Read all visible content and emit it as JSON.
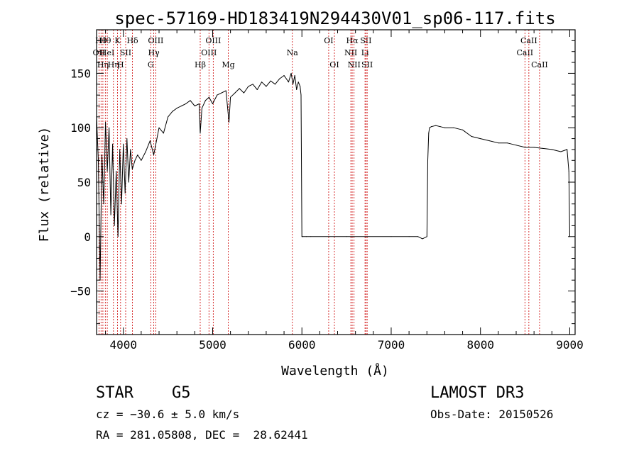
{
  "chart_data": {
    "type": "line",
    "title": "spec-57169-HD183419N294430V01_sp06-117.fits",
    "xlabel": "Wavelength (Å)",
    "ylabel": "Flux (relative)",
    "xlim": [
      3700,
      9060
    ],
    "ylim": [
      -90,
      190
    ],
    "xticks": [
      4000,
      5000,
      6000,
      7000,
      8000,
      9000
    ],
    "yticks": [
      -50,
      0,
      50,
      100,
      150
    ],
    "x_minor_step": 200,
    "y_minor_step": 10,
    "grid": false,
    "series": [
      {
        "name": "flux",
        "x": [
          3700,
          3720,
          3740,
          3760,
          3780,
          3800,
          3820,
          3840,
          3860,
          3880,
          3900,
          3920,
          3940,
          3960,
          3980,
          4000,
          4020,
          4040,
          4060,
          4080,
          4100,
          4130,
          4160,
          4200,
          4250,
          4300,
          4340,
          4400,
          4450,
          4500,
          4550,
          4600,
          4650,
          4700,
          4750,
          4800,
          4850,
          4861,
          4880,
          4920,
          4960,
          5000,
          5050,
          5100,
          5150,
          5183,
          5200,
          5250,
          5300,
          5350,
          5400,
          5450,
          5500,
          5550,
          5600,
          5650,
          5700,
          5750,
          5800,
          5850,
          5880,
          5900,
          5920,
          5940,
          5960,
          5980,
          5990,
          6000,
          6005,
          6010,
          6050,
          6100,
          6500,
          7000,
          7200,
          7300,
          7350,
          7400,
          7410,
          7420,
          7430,
          7450,
          7500,
          7550,
          7600,
          7700,
          7800,
          7900,
          8000,
          8100,
          8200,
          8300,
          8400,
          8500,
          8600,
          8700,
          8800,
          8900,
          8970,
          8990,
          9000
        ],
        "y": [
          110,
          70,
          -40,
          75,
          30,
          105,
          60,
          100,
          20,
          85,
          10,
          60,
          0,
          80,
          30,
          85,
          40,
          90,
          50,
          80,
          62,
          70,
          75,
          70,
          78,
          88,
          75,
          100,
          95,
          110,
          115,
          118,
          120,
          122,
          125,
          120,
          122,
          95,
          118,
          125,
          128,
          122,
          130,
          132,
          134,
          105,
          128,
          132,
          136,
          132,
          138,
          140,
          135,
          142,
          138,
          143,
          140,
          145,
          148,
          142,
          150,
          140,
          148,
          135,
          142,
          138,
          130,
          0,
          0,
          0,
          0,
          0,
          0,
          0,
          0,
          0,
          -2,
          0,
          70,
          95,
          100,
          101,
          102,
          101,
          100,
          100,
          98,
          92,
          90,
          88,
          86,
          86,
          84,
          82,
          82,
          81,
          80,
          78,
          80,
          60,
          0
        ]
      }
    ],
    "lines": [
      {
        "w": 3727,
        "label": "OII",
        "row": 1
      },
      {
        "w": 3750,
        "label": "Hθ",
        "row": 0
      },
      {
        "w": 3771,
        "label": "Hη",
        "row": 2
      },
      {
        "w": 3798,
        "label": "Hθ",
        "row": 0
      },
      {
        "w": 3820,
        "label": "HeI",
        "row": 1
      },
      {
        "w": 3889,
        "label": "Hη",
        "row": 2
      },
      {
        "w": 3934,
        "label": "K",
        "row": 0
      },
      {
        "w": 3969,
        "label": "H",
        "row": 2
      },
      {
        "w": 4026,
        "label": "SII",
        "row": 1
      },
      {
        "w": 4102,
        "label": "Hδ",
        "row": 0
      },
      {
        "w": 4307,
        "label": "G",
        "row": 2
      },
      {
        "w": 4341,
        "label": "Hγ",
        "row": 1
      },
      {
        "w": 4363,
        "label": "OIII",
        "row": 0
      },
      {
        "w": 4861,
        "label": "Hβ",
        "row": 2
      },
      {
        "w": 4959,
        "label": "OIII",
        "row": 1
      },
      {
        "w": 5007,
        "label": "OIII",
        "row": 0
      },
      {
        "w": 5175,
        "label": "Mg",
        "row": 2
      },
      {
        "w": 5893,
        "label": "Na",
        "row": 1
      },
      {
        "w": 6300,
        "label": "OI",
        "row": 0
      },
      {
        "w": 6364,
        "label": "OI",
        "row": 2
      },
      {
        "w": 6548,
        "label": "NII",
        "row": 1
      },
      {
        "w": 6563,
        "label": "Hα",
        "row": 0
      },
      {
        "w": 6584,
        "label": "NII",
        "row": 2
      },
      {
        "w": 6707,
        "label": "Li",
        "row": 1
      },
      {
        "w": 6717,
        "label": "SII",
        "row": 0
      },
      {
        "w": 6731,
        "label": "SII",
        "row": 2
      },
      {
        "w": 8498,
        "label": "CaII",
        "row": 1
      },
      {
        "w": 8542,
        "label": "CaII",
        "row": 0
      },
      {
        "w": 8662,
        "label": "CaII",
        "row": 2
      }
    ]
  },
  "info": {
    "object_type": "STAR",
    "subclass": "G5",
    "survey": "LAMOST DR3",
    "cz": "cz = −30.6 ± 5.0 km/s",
    "obs_date": "Obs-Date: 20150526",
    "radec": "RA = 281.05808, DEC =  28.62441"
  }
}
